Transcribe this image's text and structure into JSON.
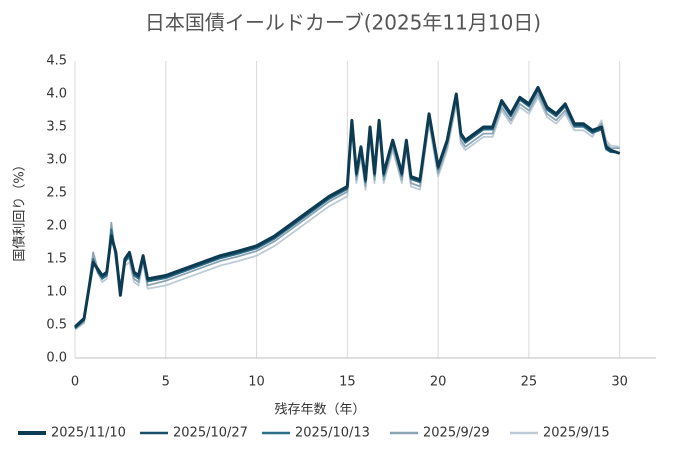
{
  "chart_data": {
    "type": "line",
    "title": "日本国債イールドカーブ(2025年11月10日)",
    "x_label": "残存年数（年）",
    "y_label": "国債利回り（%）",
    "x": [
      0,
      0.5,
      1,
      1.25,
      1.5,
      1.75,
      2,
      2.25,
      2.5,
      2.75,
      3,
      3.25,
      3.5,
      3.75,
      4,
      5,
      6,
      7,
      8,
      9,
      10,
      11,
      12,
      13,
      14,
      15,
      15.25,
      15.5,
      15.75,
      16,
      16.25,
      16.5,
      16.75,
      17,
      17.5,
      18,
      18.25,
      18.5,
      19,
      19.5,
      20,
      20.5,
      21,
      21.25,
      21.5,
      22,
      22.5,
      23,
      23.5,
      24,
      24.5,
      25,
      25.5,
      26,
      26.5,
      27,
      27.5,
      28,
      28.5,
      29,
      29.25,
      29.5,
      30
    ],
    "xlim": [
      0,
      32
    ],
    "xticks": [
      0,
      5,
      10,
      15,
      20,
      25,
      30
    ],
    "ylim": [
      0,
      4.5
    ],
    "yticks": [
      {
        "value": 0,
        "label": "0.0"
      },
      0.5,
      {
        "value": 1,
        "label": "1.0"
      },
      1.5,
      {
        "value": 2,
        "label": "2.0"
      },
      2.5,
      {
        "value": 3,
        "label": "3.0"
      },
      3.5,
      {
        "value": 4,
        "label": "4.0"
      },
      4.5
    ],
    "grid": "x",
    "legend": "bottom",
    "series": [
      {
        "name": "2025/11/10",
        "color": "#0d3b52",
        "values": [
          0.47,
          0.6,
          1.45,
          1.35,
          1.25,
          1.3,
          1.85,
          1.6,
          0.95,
          1.5,
          1.6,
          1.3,
          1.25,
          1.55,
          1.2,
          1.25,
          1.35,
          1.45,
          1.55,
          1.62,
          1.7,
          1.85,
          2.05,
          2.25,
          2.45,
          2.6,
          3.6,
          2.8,
          3.2,
          2.7,
          3.5,
          2.8,
          3.6,
          2.8,
          3.3,
          2.8,
          3.3,
          2.75,
          2.7,
          3.7,
          2.9,
          3.3,
          4.0,
          3.4,
          3.3,
          3.4,
          3.5,
          3.5,
          3.9,
          3.7,
          3.95,
          3.85,
          4.1,
          3.8,
          3.7,
          3.85,
          3.55,
          3.55,
          3.45,
          3.5,
          3.2,
          3.15,
          3.1
        ]
      },
      {
        "name": "2025/10/27",
        "color": "#1b4f68",
        "values": [
          0.46,
          0.58,
          1.43,
          1.33,
          1.23,
          1.28,
          1.82,
          1.58,
          1.0,
          1.48,
          1.58,
          1.28,
          1.23,
          1.52,
          1.18,
          1.23,
          1.33,
          1.43,
          1.53,
          1.6,
          1.68,
          1.83,
          2.03,
          2.23,
          2.43,
          2.58,
          3.58,
          2.78,
          3.18,
          2.68,
          3.48,
          2.78,
          3.58,
          2.78,
          3.28,
          2.78,
          3.28,
          2.73,
          2.68,
          3.68,
          2.88,
          3.28,
          3.98,
          3.38,
          3.28,
          3.38,
          3.48,
          3.48,
          3.88,
          3.68,
          3.93,
          3.83,
          4.08,
          3.78,
          3.68,
          3.83,
          3.53,
          3.53,
          3.43,
          3.48,
          3.18,
          3.13,
          3.1
        ]
      },
      {
        "name": "2025/10/13",
        "color": "#2c6d87",
        "values": [
          0.45,
          0.57,
          1.5,
          1.3,
          1.2,
          1.25,
          1.95,
          1.55,
          1.05,
          1.45,
          1.55,
          1.25,
          1.2,
          1.5,
          1.16,
          1.21,
          1.31,
          1.41,
          1.51,
          1.58,
          1.66,
          1.81,
          2.01,
          2.21,
          2.41,
          2.56,
          3.56,
          2.76,
          3.16,
          2.66,
          3.46,
          2.76,
          3.56,
          2.76,
          3.26,
          2.76,
          3.26,
          2.71,
          2.66,
          3.66,
          2.86,
          3.26,
          3.96,
          3.36,
          3.26,
          3.36,
          3.46,
          3.46,
          3.86,
          3.66,
          3.91,
          3.81,
          4.06,
          3.76,
          3.66,
          3.81,
          3.51,
          3.51,
          3.41,
          3.46,
          3.16,
          3.12,
          3.11
        ]
      },
      {
        "name": "2025/9/29",
        "color": "#8ba5b5",
        "values": [
          0.44,
          0.55,
          1.6,
          1.35,
          1.2,
          1.25,
          2.05,
          1.5,
          1.1,
          1.5,
          1.5,
          1.2,
          1.15,
          1.5,
          1.1,
          1.17,
          1.27,
          1.37,
          1.47,
          1.54,
          1.62,
          1.77,
          1.97,
          2.17,
          2.37,
          2.52,
          3.55,
          2.7,
          3.1,
          2.6,
          3.4,
          2.7,
          3.55,
          2.7,
          3.2,
          2.7,
          3.2,
          2.65,
          2.6,
          3.6,
          2.8,
          3.2,
          3.9,
          3.3,
          3.2,
          3.3,
          3.4,
          3.4,
          3.8,
          3.6,
          3.85,
          3.75,
          4.0,
          3.7,
          3.6,
          3.75,
          3.5,
          3.5,
          3.4,
          3.55,
          3.25,
          3.18,
          3.18
        ]
      },
      {
        "name": "2025/9/15",
        "color": "#bccbd5",
        "values": [
          0.43,
          0.53,
          1.55,
          1.3,
          1.15,
          1.2,
          2.0,
          1.45,
          1.05,
          1.4,
          1.45,
          1.15,
          1.1,
          1.45,
          1.05,
          1.1,
          1.2,
          1.3,
          1.4,
          1.47,
          1.55,
          1.7,
          1.9,
          2.1,
          2.3,
          2.45,
          3.5,
          2.65,
          3.05,
          2.55,
          3.35,
          2.65,
          3.5,
          2.65,
          3.15,
          2.65,
          3.15,
          2.6,
          2.55,
          3.55,
          2.75,
          3.15,
          3.85,
          3.25,
          3.15,
          3.25,
          3.35,
          3.35,
          3.75,
          3.55,
          3.8,
          3.7,
          3.95,
          3.65,
          3.55,
          3.7,
          3.45,
          3.45,
          3.35,
          3.6,
          3.3,
          3.22,
          3.2
        ]
      }
    ]
  }
}
